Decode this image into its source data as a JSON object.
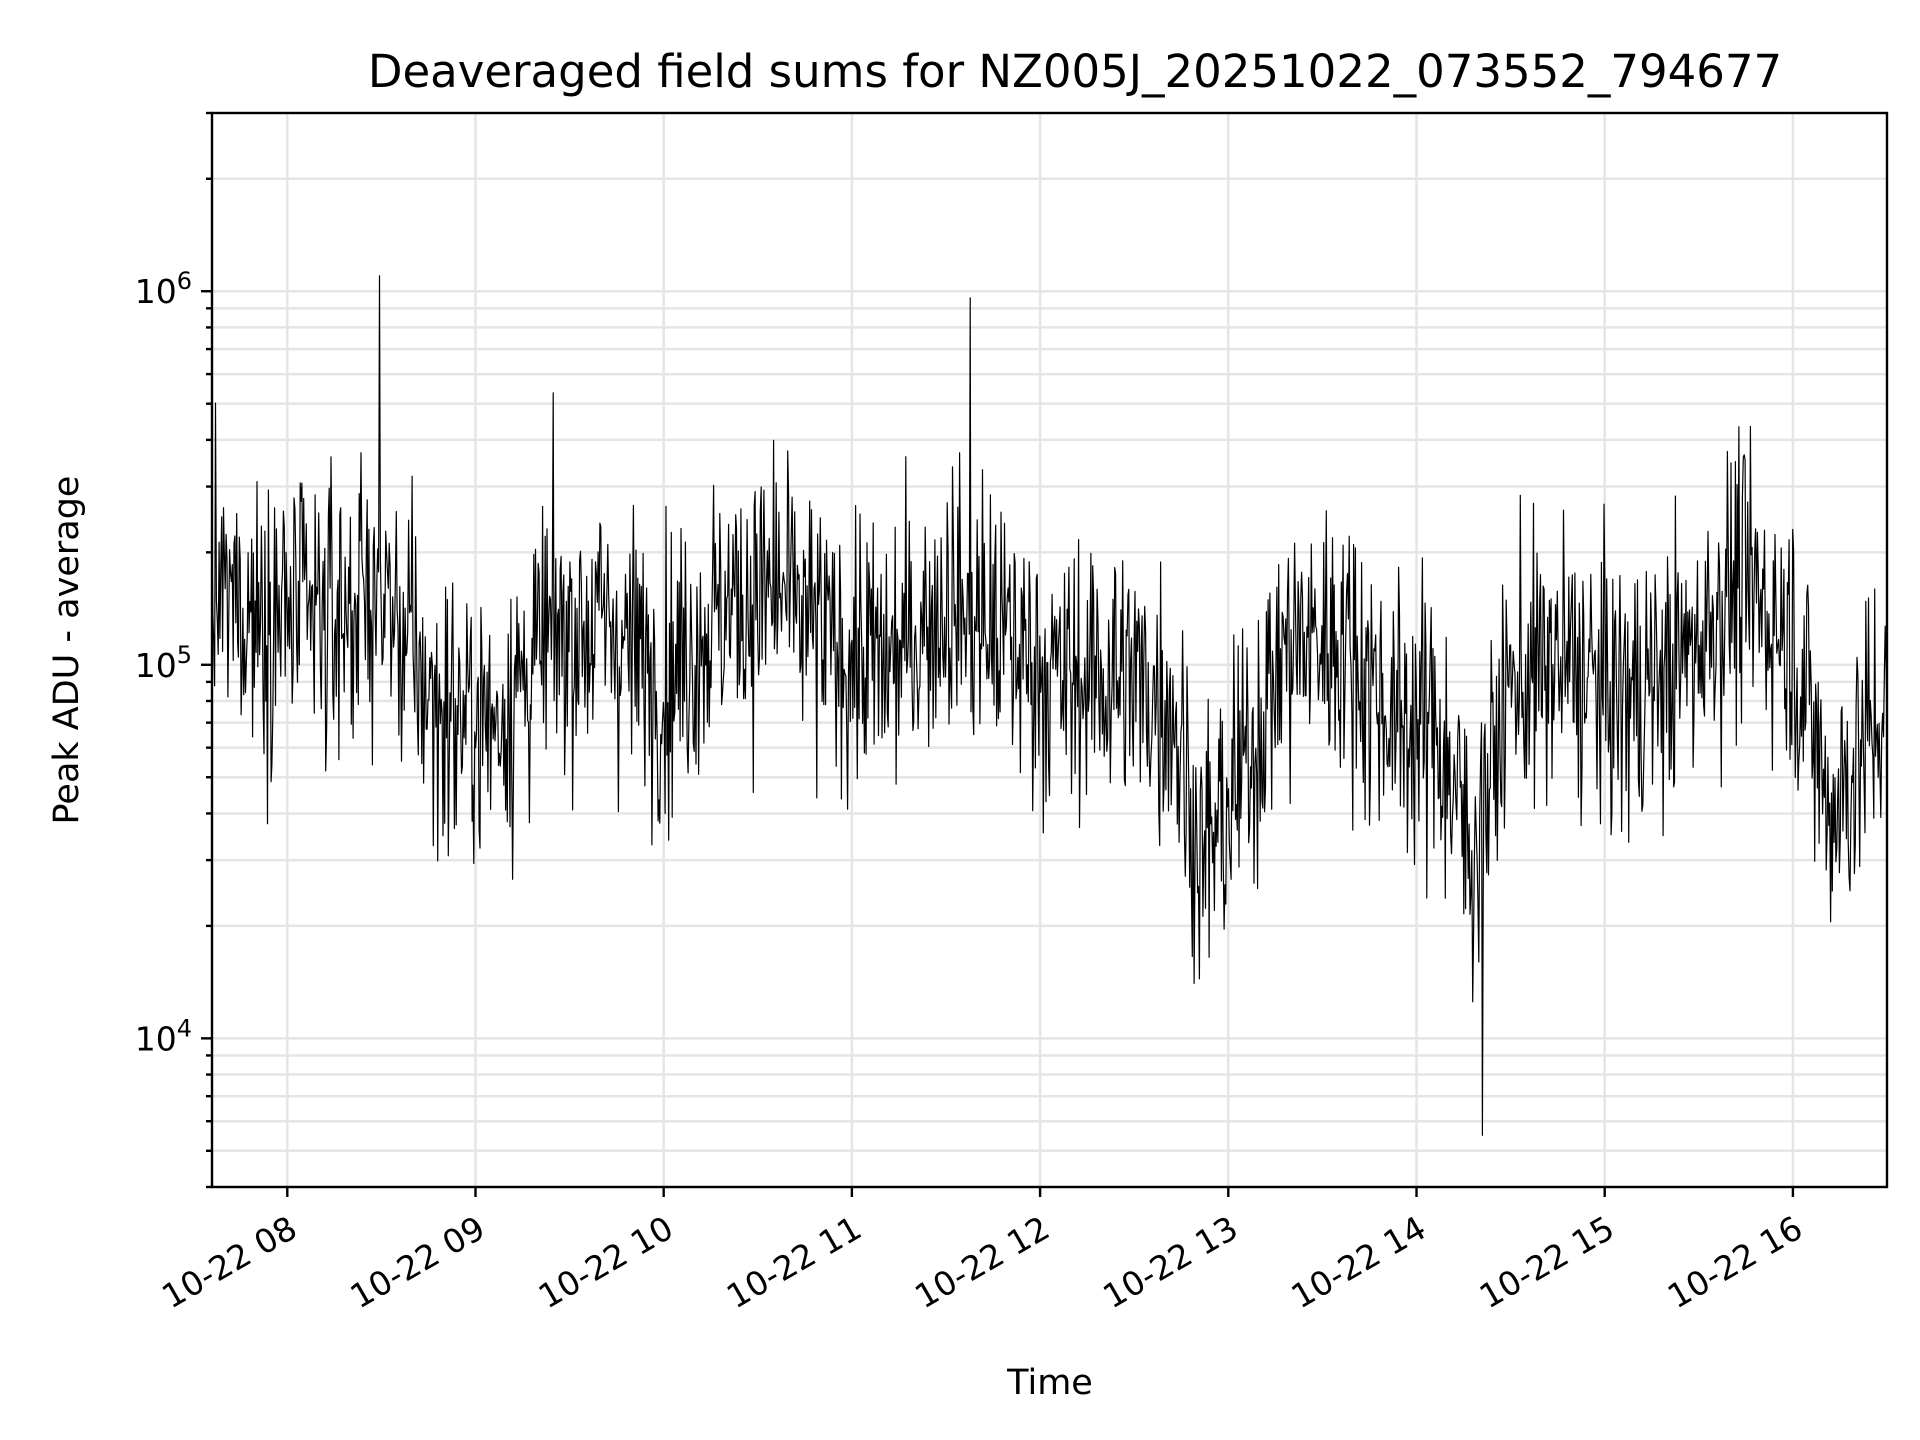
{
  "chart_data": {
    "type": "line",
    "title": "Deaveraged field sums for NZ005J_20251022_073552_794677",
    "xlabel": "Time",
    "ylabel": "Peak ADU - average",
    "yscale": "log",
    "ylim": [
      4000,
      3000000
    ],
    "xlim_hours": [
      7.6,
      16.5
    ],
    "grid": true,
    "x_ticks": [
      {
        "hour": 8,
        "label": "10-22 08"
      },
      {
        "hour": 9,
        "label": "10-22 09"
      },
      {
        "hour": 10,
        "label": "10-22 10"
      },
      {
        "hour": 11,
        "label": "10-22 11"
      },
      {
        "hour": 12,
        "label": "10-22 12"
      },
      {
        "hour": 13,
        "label": "10-22 13"
      },
      {
        "hour": 14,
        "label": "10-22 14"
      },
      {
        "hour": 15,
        "label": "10-22 15"
      },
      {
        "hour": 16,
        "label": "10-22 16"
      }
    ],
    "y_ticks": [
      {
        "value": 10000,
        "base": "10",
        "exp": "4"
      },
      {
        "value": 100000,
        "base": "10",
        "exp": "5"
      },
      {
        "value": 1000000,
        "base": "10",
        "exp": "6"
      }
    ],
    "series": [
      {
        "name": "deaveraged field sum",
        "color": "#000000",
        "envelope": {
          "hours": [
            7.6,
            7.9,
            8.2,
            8.5,
            8.8,
            9.1,
            9.4,
            9.7,
            10.0,
            10.3,
            10.6,
            10.9,
            11.2,
            11.5,
            11.8,
            12.1,
            12.4,
            12.7,
            12.85,
            13.0,
            13.3,
            13.6,
            13.9,
            14.1,
            14.3,
            14.5,
            14.8,
            15.1,
            15.4,
            15.7,
            16.0,
            16.2,
            16.5
          ],
          "median": [
            150000,
            140000,
            130000,
            160000,
            75000,
            70000,
            120000,
            130000,
            90000,
            140000,
            160000,
            110000,
            100000,
            150000,
            120000,
            90000,
            95000,
            80000,
            30000,
            40000,
            110000,
            120000,
            70000,
            70000,
            30000,
            90000,
            100000,
            80000,
            100000,
            170000,
            120000,
            40000,
            80000
          ]
        },
        "notable_points": [
          {
            "hour": 8.49,
            "value": 1100000,
            "note": "global maximum"
          },
          {
            "hour": 11.63,
            "value": 960000,
            "note": "secondary peak"
          },
          {
            "hour": 14.35,
            "value": 5500,
            "note": "global minimum"
          }
        ]
      }
    ]
  }
}
